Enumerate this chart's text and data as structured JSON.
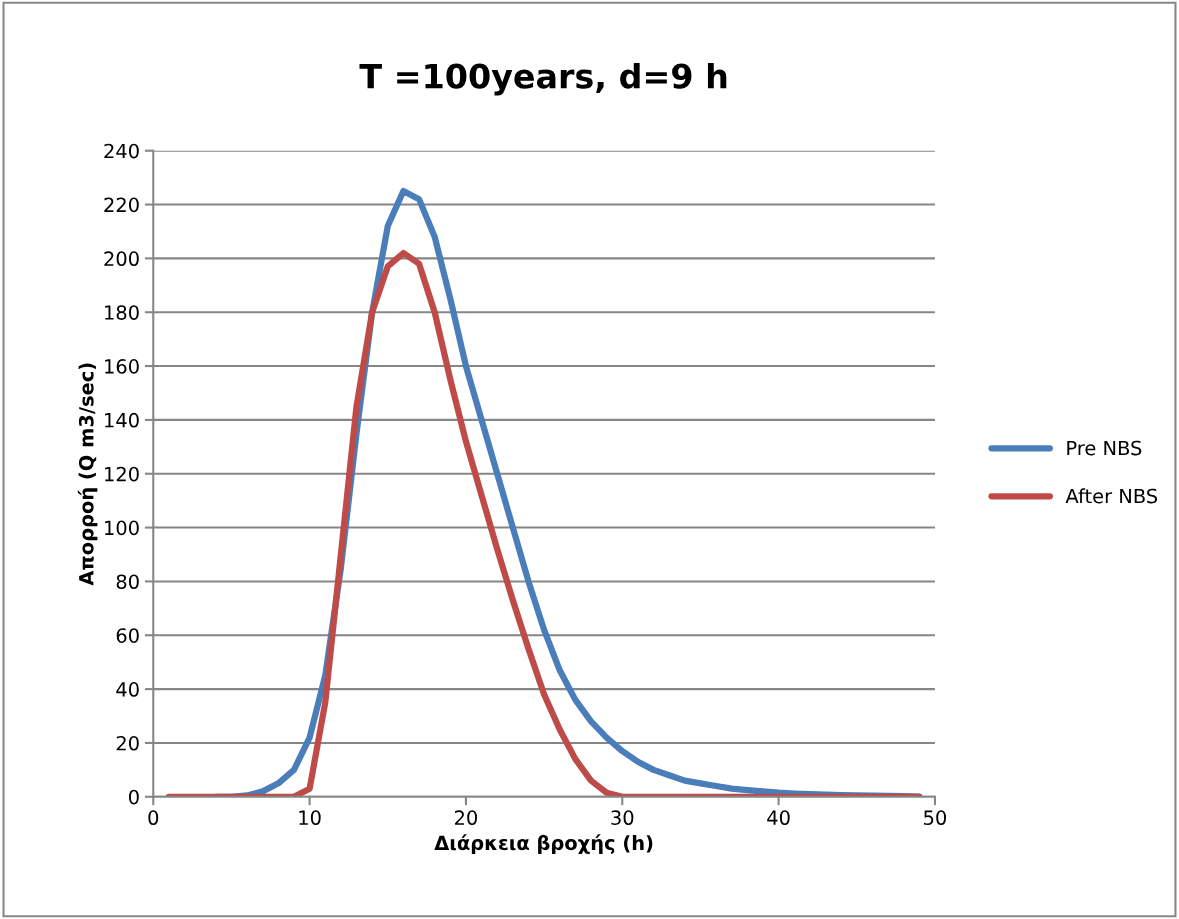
{
  "chart_data": {
    "type": "line",
    "title": "T =100years, d=9 h",
    "xlabel": "Διάρκεια βροχής (h)",
    "ylabel": "Απορροή (Q m3/sec)",
    "x": [
      1,
      2,
      3,
      4,
      5,
      6,
      7,
      8,
      9,
      10,
      11,
      12,
      13,
      14,
      15,
      16,
      17,
      18,
      19,
      20,
      21,
      22,
      23,
      24,
      25,
      26,
      27,
      28,
      29,
      30,
      31,
      32,
      33,
      34,
      35,
      36,
      37,
      38,
      39,
      40,
      41,
      42,
      43,
      44,
      45,
      46,
      47,
      48,
      49
    ],
    "series": [
      {
        "name": "Pre NBS",
        "color": "#4a7ebb",
        "values": [
          null,
          null,
          null,
          0,
          0,
          0.5,
          2,
          5,
          10,
          22,
          45,
          85,
          135,
          180,
          212,
          225,
          222,
          208,
          185,
          160,
          140,
          120,
          100,
          80,
          62,
          47,
          36,
          28,
          22,
          17,
          13,
          10,
          8,
          6,
          5,
          4,
          3,
          2.5,
          2,
          1.5,
          1.2,
          1,
          0.8,
          0.6,
          0.5,
          0.4,
          0.3,
          0.2,
          0.1
        ]
      },
      {
        "name": "After NBS",
        "color": "#be4b48",
        "values": [
          0,
          0,
          0,
          0,
          0,
          0,
          0,
          0,
          0,
          3,
          35,
          90,
          145,
          180,
          197,
          202,
          198,
          180,
          155,
          132,
          112,
          92,
          73,
          55,
          38,
          25,
          14,
          6,
          1.5,
          0,
          0,
          0,
          0,
          0,
          0,
          0,
          0,
          0,
          0,
          0,
          0,
          0,
          0,
          0,
          0,
          0,
          0,
          0,
          0
        ]
      }
    ],
    "xlim": [
      0,
      50
    ],
    "xticks": [
      0,
      10,
      20,
      30,
      40,
      50
    ],
    "ylim": [
      0,
      240
    ],
    "yticks": [
      0,
      20,
      40,
      60,
      80,
      100,
      120,
      140,
      160,
      180,
      200,
      220,
      240
    ],
    "grid": "y",
    "legend": "right",
    "marker": "none",
    "line_style": "solid"
  }
}
